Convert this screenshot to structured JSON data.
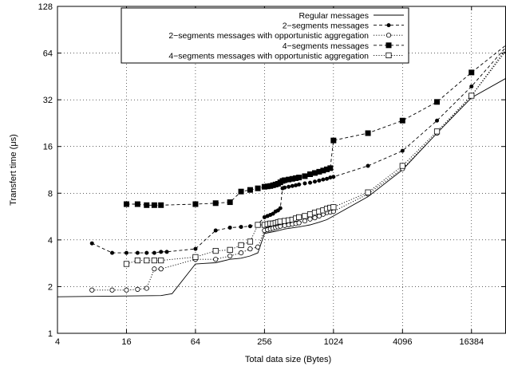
{
  "chart_data": {
    "type": "line",
    "xscale": "log2",
    "yscale": "log2",
    "xlim": [
      4,
      32768
    ],
    "ylim": [
      1,
      128
    ],
    "xticks": [
      4,
      16,
      64,
      256,
      1024,
      4096,
      16384
    ],
    "xtick_labels": [
      "4",
      "16",
      "64",
      "256",
      "1024",
      "4096",
      "16384"
    ],
    "yticks": [
      1,
      2,
      4,
      8,
      16,
      32,
      64,
      128
    ],
    "ytick_labels": [
      "1",
      "2",
      "4",
      "8",
      "16",
      "32",
      "64",
      "128"
    ],
    "xlabel": "Total data size (Bytes)",
    "ylabel": "Transfert time (μs)",
    "grid": true,
    "legend_position": "top-right",
    "series": [
      {
        "name": "Regular messages",
        "line": "solid",
        "marker": "none",
        "points": [
          [
            4,
            1.72
          ],
          [
            32,
            1.75
          ],
          [
            40,
            1.8
          ],
          [
            64,
            2.8
          ],
          [
            96,
            2.85
          ],
          [
            128,
            3.0
          ],
          [
            160,
            3.05
          ],
          [
            192,
            3.15
          ],
          [
            224,
            3.3
          ],
          [
            256,
            4.4
          ],
          [
            320,
            4.55
          ],
          [
            384,
            4.7
          ],
          [
            512,
            4.85
          ],
          [
            640,
            5.0
          ],
          [
            768,
            5.2
          ],
          [
            896,
            5.4
          ],
          [
            1024,
            5.7
          ],
          [
            2048,
            7.6
          ],
          [
            4096,
            11.3
          ],
          [
            8192,
            19.5
          ],
          [
            16384,
            33.0
          ],
          [
            32768,
            44.0
          ]
        ]
      },
      {
        "name": "2−segments messages",
        "line": "dashed",
        "marker": "filled-circle",
        "points": [
          [
            8,
            3.8
          ],
          [
            12,
            3.3
          ],
          [
            16,
            3.3
          ],
          [
            20,
            3.3
          ],
          [
            24,
            3.3
          ],
          [
            28,
            3.3
          ],
          [
            32,
            3.35
          ],
          [
            36,
            3.35
          ],
          [
            64,
            3.5
          ],
          [
            96,
            4.6
          ],
          [
            128,
            4.8
          ],
          [
            160,
            4.85
          ],
          [
            192,
            4.9
          ],
          [
            224,
            5.05
          ],
          [
            256,
            5.6
          ],
          [
            272,
            5.7
          ],
          [
            288,
            5.8
          ],
          [
            304,
            5.9
          ],
          [
            320,
            6.1
          ],
          [
            336,
            6.2
          ],
          [
            352,
            6.4
          ],
          [
            368,
            8.6
          ],
          [
            384,
            8.7
          ],
          [
            416,
            8.8
          ],
          [
            448,
            8.9
          ],
          [
            480,
            9.0
          ],
          [
            512,
            9.1
          ],
          [
            576,
            9.25
          ],
          [
            640,
            9.35
          ],
          [
            704,
            9.5
          ],
          [
            768,
            9.65
          ],
          [
            832,
            9.8
          ],
          [
            896,
            9.9
          ],
          [
            960,
            10.1
          ],
          [
            1024,
            10.2
          ],
          [
            2048,
            12.0
          ],
          [
            4096,
            15.0
          ],
          [
            8192,
            23.5
          ],
          [
            16384,
            39.0
          ],
          [
            32768,
            70.0
          ]
        ]
      },
      {
        "name": "2−segments messages with opportunistic aggregation",
        "line": "dotted",
        "marker": "open-circle",
        "points": [
          [
            8,
            1.9
          ],
          [
            12,
            1.9
          ],
          [
            16,
            1.9
          ],
          [
            20,
            1.92
          ],
          [
            24,
            1.95
          ],
          [
            28,
            2.6
          ],
          [
            32,
            2.6
          ],
          [
            64,
            3.0
          ],
          [
            96,
            3.0
          ],
          [
            128,
            3.15
          ],
          [
            160,
            3.3
          ],
          [
            192,
            3.5
          ],
          [
            224,
            3.6
          ],
          [
            256,
            4.6
          ],
          [
            272,
            4.65
          ],
          [
            288,
            4.7
          ],
          [
            304,
            4.75
          ],
          [
            320,
            4.8
          ],
          [
            336,
            4.85
          ],
          [
            352,
            4.9
          ],
          [
            384,
            4.95
          ],
          [
            416,
            5.0
          ],
          [
            448,
            5.05
          ],
          [
            480,
            5.1
          ],
          [
            512,
            5.15
          ],
          [
            576,
            5.3
          ],
          [
            640,
            5.45
          ],
          [
            704,
            5.55
          ],
          [
            768,
            5.7
          ],
          [
            832,
            5.85
          ],
          [
            896,
            6.0
          ],
          [
            960,
            6.05
          ],
          [
            1024,
            6.1
          ],
          [
            2048,
            7.9
          ],
          [
            4096,
            11.5
          ],
          [
            8192,
            19.5
          ],
          [
            16384,
            34.0
          ],
          [
            32768,
            66.0
          ]
        ]
      },
      {
        "name": "4−segments messages",
        "line": "dashed",
        "marker": "filled-square",
        "points": [
          [
            16,
            6.8
          ],
          [
            20,
            6.8
          ],
          [
            24,
            6.7
          ],
          [
            28,
            6.7
          ],
          [
            32,
            6.7
          ],
          [
            64,
            6.8
          ],
          [
            96,
            6.9
          ],
          [
            128,
            7.0
          ],
          [
            160,
            8.2
          ],
          [
            192,
            8.4
          ],
          [
            224,
            8.6
          ],
          [
            256,
            8.8
          ],
          [
            272,
            8.85
          ],
          [
            288,
            8.9
          ],
          [
            304,
            9.0
          ],
          [
            320,
            9.1
          ],
          [
            336,
            9.2
          ],
          [
            352,
            9.4
          ],
          [
            368,
            9.6
          ],
          [
            384,
            9.7
          ],
          [
            416,
            9.8
          ],
          [
            448,
            9.9
          ],
          [
            480,
            10.0
          ],
          [
            512,
            10.1
          ],
          [
            576,
            10.3
          ],
          [
            640,
            10.6
          ],
          [
            704,
            10.8
          ],
          [
            768,
            11.0
          ],
          [
            832,
            11.2
          ],
          [
            896,
            11.4
          ],
          [
            960,
            11.6
          ],
          [
            1024,
            17.5
          ],
          [
            2048,
            19.5
          ],
          [
            4096,
            23.5
          ],
          [
            8192,
            31.0
          ],
          [
            16384,
            48.0
          ],
          [
            32768,
            72.0
          ]
        ]
      },
      {
        "name": "4−segments messages with opportunistic aggregation",
        "line": "dotted",
        "marker": "open-square",
        "points": [
          [
            16,
            2.8
          ],
          [
            20,
            2.95
          ],
          [
            24,
            2.95
          ],
          [
            28,
            2.95
          ],
          [
            32,
            2.95
          ],
          [
            64,
            3.1
          ],
          [
            96,
            3.4
          ],
          [
            128,
            3.45
          ],
          [
            160,
            3.7
          ],
          [
            192,
            3.9
          ],
          [
            224,
            5.0
          ],
          [
            256,
            5.0
          ],
          [
            272,
            5.05
          ],
          [
            288,
            5.1
          ],
          [
            304,
            5.1
          ],
          [
            320,
            5.15
          ],
          [
            336,
            5.2
          ],
          [
            352,
            5.25
          ],
          [
            384,
            5.3
          ],
          [
            416,
            5.35
          ],
          [
            448,
            5.4
          ],
          [
            480,
            5.5
          ],
          [
            512,
            5.6
          ],
          [
            576,
            5.7
          ],
          [
            640,
            5.85
          ],
          [
            704,
            6.0
          ],
          [
            768,
            6.1
          ],
          [
            832,
            6.2
          ],
          [
            896,
            6.35
          ],
          [
            960,
            6.45
          ],
          [
            1024,
            6.5
          ],
          [
            2048,
            8.1
          ],
          [
            4096,
            12.0
          ],
          [
            8192,
            20.0
          ],
          [
            16384,
            34.0
          ],
          [
            32768,
            68.0
          ]
        ]
      }
    ]
  }
}
